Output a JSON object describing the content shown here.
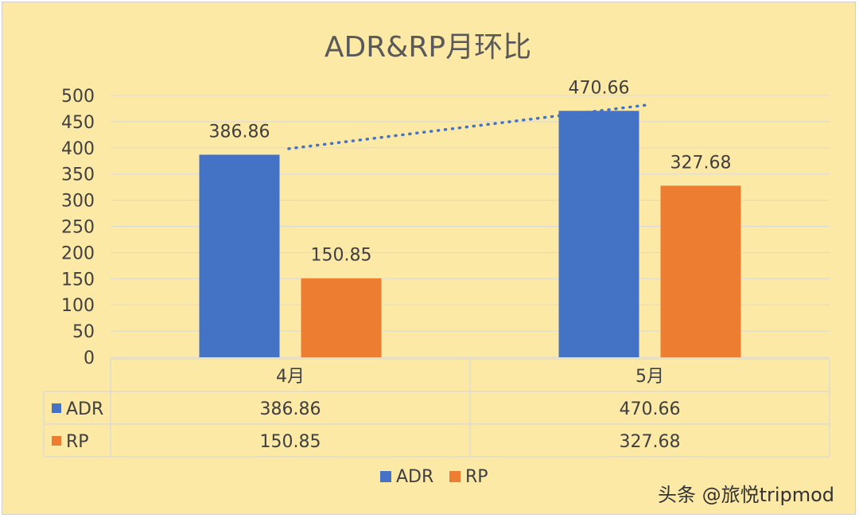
{
  "chart_data": {
    "type": "bar",
    "title": "ADR&RP月环比",
    "categories": [
      "4月",
      "5月"
    ],
    "series": [
      {
        "name": "ADR",
        "values": [
          386.86,
          470.66
        ],
        "labels": [
          "386.86",
          "470.66"
        ],
        "color": "#4472c4"
      },
      {
        "name": "RP",
        "values": [
          150.85,
          327.68
        ],
        "labels": [
          "150.85",
          "327.68"
        ],
        "color": "#ed7d31"
      }
    ],
    "ylim": [
      0,
      500
    ],
    "yticks": [
      "0",
      "50",
      "100",
      "150",
      "200",
      "250",
      "300",
      "350",
      "400",
      "450",
      "500"
    ],
    "grid": true,
    "trendline": {
      "series": "ADR",
      "style": "dotted",
      "color": "#4472c4"
    },
    "data_table": true,
    "legend": "bottom"
  },
  "colors": {
    "background": "#fde9a6",
    "gridline": "#d9d9d9",
    "text": "#404040"
  },
  "watermark": "头条 @旅悦tripmod"
}
